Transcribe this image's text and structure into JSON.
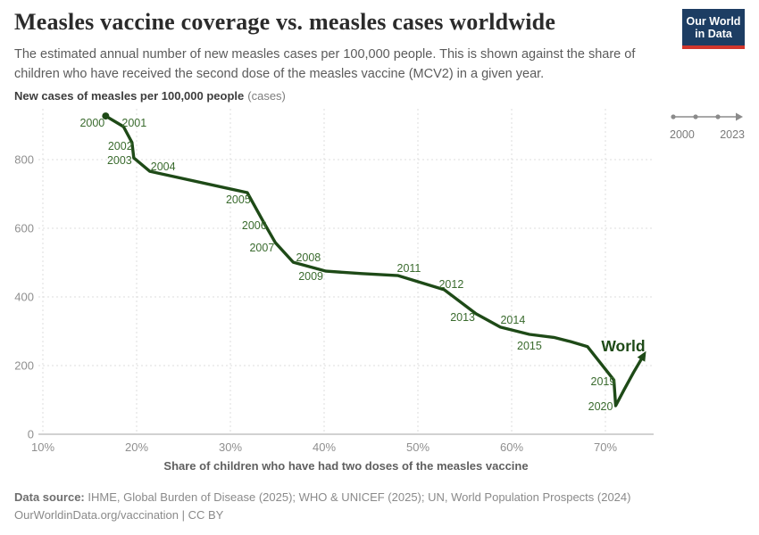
{
  "header": {
    "title": "Measles vaccine coverage vs. measles cases worldwide",
    "subtitle": "The estimated annual number of new measles cases per 100,000 people. This is shown against the share of children who have received the second dose of the measles vaccine (MCV2) in a given year.",
    "logo": {
      "line1": "Our World",
      "line2": "in Data",
      "bg_color": "#1d3d63",
      "accent_color": "#d2362c"
    }
  },
  "timeline": {
    "start": "2000",
    "end": "2023"
  },
  "chart_data": {
    "type": "line",
    "subtype": "connected-scatter",
    "title": "Measles vaccine coverage vs. measles cases worldwide",
    "xlabel": "Share of children who have had two doses of the measles vaccine",
    "ylabel": "New cases of measles per 100,000 people",
    "ylabel_unit": "(cases)",
    "x_axis": {
      "ticks": [
        10,
        20,
        30,
        40,
        50,
        60,
        70
      ],
      "tick_suffix": "%",
      "range": [
        9.5,
        75.2
      ]
    },
    "y_axis": {
      "ticks": [
        0,
        200,
        400,
        600,
        800
      ],
      "range": [
        0,
        950
      ]
    },
    "grid": true,
    "legend_position": "end-of-line",
    "line_color": "#1e4a17",
    "year_label_color": "#3a6b2e",
    "axis_text_color": "#8f8f8f",
    "series": [
      {
        "name": "World",
        "points": [
          {
            "year": 2000,
            "coverage_pct": 16.7,
            "cases_per_100k": 927
          },
          {
            "year": 2001,
            "coverage_pct": 18.6,
            "cases_per_100k": 896
          },
          {
            "year": 2002,
            "coverage_pct": 19.5,
            "cases_per_100k": 850
          },
          {
            "year": 2003,
            "coverage_pct": 19.7,
            "cases_per_100k": 805
          },
          {
            "year": 2004,
            "coverage_pct": 21.4,
            "cases_per_100k": 766
          },
          {
            "year": 2005,
            "coverage_pct": 31.8,
            "cases_per_100k": 704
          },
          {
            "year": 2006,
            "coverage_pct": 33.6,
            "cases_per_100k": 615
          },
          {
            "year": 2007,
            "coverage_pct": 34.8,
            "cases_per_100k": 558
          },
          {
            "year": 2008,
            "coverage_pct": 36.7,
            "cases_per_100k": 501
          },
          {
            "year": 2009,
            "coverage_pct": 40.2,
            "cases_per_100k": 475
          },
          {
            "year": 2010,
            "coverage_pct": 44.0,
            "cases_per_100k": 468
          },
          {
            "year": 2011,
            "coverage_pct": 47.9,
            "cases_per_100k": 462
          },
          {
            "year": 2012,
            "coverage_pct": 52.8,
            "cases_per_100k": 421
          },
          {
            "year": 2013,
            "coverage_pct": 56.2,
            "cases_per_100k": 351
          },
          {
            "year": 2014,
            "coverage_pct": 58.8,
            "cases_per_100k": 312
          },
          {
            "year": 2015,
            "coverage_pct": 61.9,
            "cases_per_100k": 291
          },
          {
            "year": 2016,
            "coverage_pct": 64.5,
            "cases_per_100k": 282
          },
          {
            "year": 2017,
            "coverage_pct": 66.3,
            "cases_per_100k": 270
          },
          {
            "year": 2018,
            "coverage_pct": 68.1,
            "cases_per_100k": 255
          },
          {
            "year": 2019,
            "coverage_pct": 70.9,
            "cases_per_100k": 158
          },
          {
            "year": 2020,
            "coverage_pct": 71.1,
            "cases_per_100k": 83
          },
          {
            "year": 2021,
            "coverage_pct": 72.0,
            "cases_per_100k": 130
          },
          {
            "year": 2022,
            "coverage_pct": 73.0,
            "cases_per_100k": 180
          },
          {
            "year": 2023,
            "coverage_pct": 74.1,
            "cases_per_100k": 231
          }
        ]
      }
    ],
    "labeled_years": [
      2000,
      2001,
      2002,
      2003,
      2004,
      2005,
      2006,
      2007,
      2008,
      2009,
      2011,
      2012,
      2013,
      2014,
      2015,
      2019,
      2020
    ],
    "end_annotation": "World"
  },
  "footer": {
    "source_label": "Data source:",
    "source_text": " IHME, Global Burden of Disease (2025); WHO & UNICEF (2025); UN, World Population Prospects (2024)",
    "citation": "OurWorldinData.org/vaccination | CC BY"
  }
}
